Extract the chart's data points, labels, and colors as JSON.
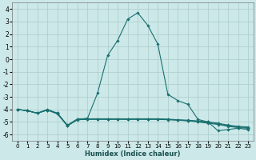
{
  "title": "",
  "xlabel": "Humidex (Indice chaleur)",
  "ylabel": "",
  "background_color": "#cce8e8",
  "grid_color": "#aacccc",
  "line_color": "#1a7070",
  "x_ticks": [
    0,
    1,
    2,
    3,
    4,
    5,
    6,
    7,
    8,
    9,
    10,
    11,
    12,
    13,
    14,
    15,
    16,
    17,
    18,
    19,
    20,
    21,
    22,
    23
  ],
  "y_ticks": [
    -6,
    -5,
    -4,
    -3,
    -2,
    -1,
    0,
    1,
    2,
    3,
    4
  ],
  "ylim": [
    -6.5,
    4.5
  ],
  "xlim": [
    -0.5,
    23.5
  ],
  "series": [
    [
      -4.0,
      -4.1,
      -4.3,
      -4.0,
      -4.3,
      -5.3,
      -4.8,
      -4.7,
      -2.7,
      0.3,
      1.5,
      3.2,
      3.7,
      2.7,
      1.2,
      -2.8,
      -3.3,
      -3.6,
      -4.8,
      -5.0,
      -5.7,
      -5.6,
      -5.5,
      -5.6
    ],
    [
      -4.0,
      -4.1,
      -4.3,
      -4.05,
      -4.3,
      -5.25,
      -4.75,
      -4.75,
      -4.75,
      -4.75,
      -4.75,
      -4.75,
      -4.75,
      -4.75,
      -4.75,
      -4.8,
      -4.85,
      -4.9,
      -5.0,
      -5.1,
      -5.2,
      -5.35,
      -5.45,
      -5.5
    ],
    [
      -4.0,
      -4.1,
      -4.3,
      -4.05,
      -4.35,
      -5.3,
      -4.8,
      -4.75,
      -4.75,
      -4.75,
      -4.75,
      -4.75,
      -4.75,
      -4.75,
      -4.75,
      -4.78,
      -4.82,
      -4.86,
      -4.92,
      -5.0,
      -5.1,
      -5.25,
      -5.35,
      -5.4
    ],
    [
      -4.0,
      -4.1,
      -4.3,
      -4.05,
      -4.35,
      -5.3,
      -4.82,
      -4.8,
      -4.8,
      -4.8,
      -4.8,
      -4.8,
      -4.8,
      -4.8,
      -4.8,
      -4.82,
      -4.86,
      -4.9,
      -4.95,
      -5.05,
      -5.15,
      -5.3,
      -5.4,
      -5.45
    ]
  ]
}
